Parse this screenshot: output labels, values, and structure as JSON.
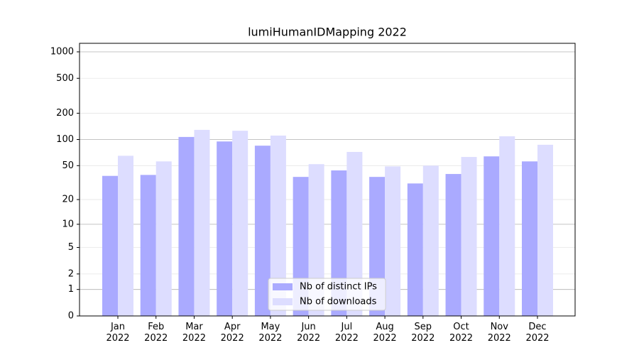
{
  "chart_data": {
    "type": "bar",
    "title": "lumiHumanIDMapping 2022",
    "categories": [
      "Jan\n2022",
      "Feb\n2022",
      "Mar\n2022",
      "Apr\n2022",
      "May\n2022",
      "Jun\n2022",
      "Jul\n2022",
      "Aug\n2022",
      "Sep\n2022",
      "Oct\n2022",
      "Nov\n2022",
      "Dec\n2022"
    ],
    "series": [
      {
        "name": "Nb of distinct IPs",
        "color": "#aaaaff",
        "values": [
          38,
          39,
          107,
          95,
          85,
          37,
          44,
          37,
          31,
          40,
          64,
          56
        ]
      },
      {
        "name": "Nb of downloads",
        "color": "#ddddff",
        "values": [
          65,
          56,
          129,
          126,
          111,
          52,
          72,
          49,
          50,
          63,
          109,
          87
        ]
      }
    ],
    "yscale": "log1p",
    "ylim": [
      0,
      1250
    ],
    "yticks": [
      0,
      1,
      2,
      5,
      10,
      20,
      50,
      100,
      200,
      500,
      1000
    ],
    "grid": true,
    "legend": "lower center"
  }
}
